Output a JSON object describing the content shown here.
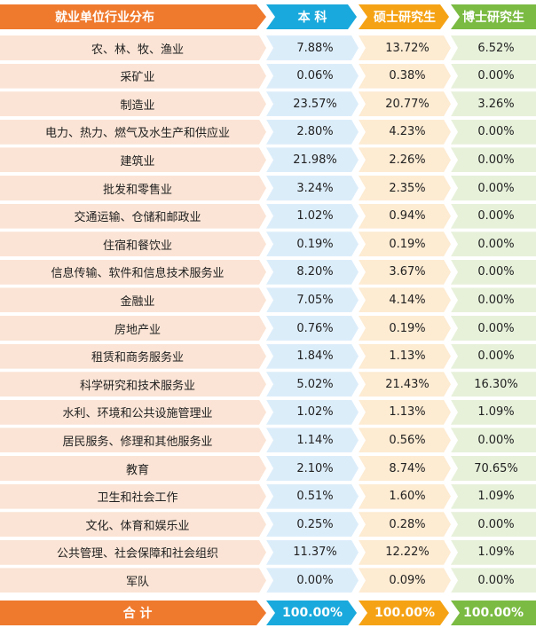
{
  "header": {
    "industry": "就业单位行业分布",
    "bachelor": "本  科",
    "master": "硕士研究生",
    "doctor": "博士研究生"
  },
  "rows": [
    {
      "industry": "农、林、牧、渔业",
      "bachelor": "7.88%",
      "master": "13.72%",
      "doctor": "6.52%"
    },
    {
      "industry": "采矿业",
      "bachelor": "0.06%",
      "master": "0.38%",
      "doctor": "0.00%"
    },
    {
      "industry": "制造业",
      "bachelor": "23.57%",
      "master": "20.77%",
      "doctor": "3.26%"
    },
    {
      "industry": "电力、热力、燃气及水生产和供应业",
      "bachelor": "2.80%",
      "master": "4.23%",
      "doctor": "0.00%"
    },
    {
      "industry": "建筑业",
      "bachelor": "21.98%",
      "master": "2.26%",
      "doctor": "0.00%"
    },
    {
      "industry": "批发和零售业",
      "bachelor": "3.24%",
      "master": "2.35%",
      "doctor": "0.00%"
    },
    {
      "industry": "交通运输、仓储和邮政业",
      "bachelor": "1.02%",
      "master": "0.94%",
      "doctor": "0.00%"
    },
    {
      "industry": "住宿和餐饮业",
      "bachelor": "0.19%",
      "master": "0.19%",
      "doctor": "0.00%"
    },
    {
      "industry": "信息传输、软件和信息技术服务业",
      "bachelor": "8.20%",
      "master": "3.67%",
      "doctor": "0.00%"
    },
    {
      "industry": "金融业",
      "bachelor": "7.05%",
      "master": "4.14%",
      "doctor": "0.00%"
    },
    {
      "industry": "房地产业",
      "bachelor": "0.76%",
      "master": "0.19%",
      "doctor": "0.00%"
    },
    {
      "industry": "租赁和商务服务业",
      "bachelor": "1.84%",
      "master": "1.13%",
      "doctor": "0.00%"
    },
    {
      "industry": "科学研究和技术服务业",
      "bachelor": "5.02%",
      "master": "21.43%",
      "doctor": "16.30%"
    },
    {
      "industry": "水利、环境和公共设施管理业",
      "bachelor": "1.02%",
      "master": "1.13%",
      "doctor": "1.09%"
    },
    {
      "industry": "居民服务、修理和其他服务业",
      "bachelor": "1.14%",
      "master": "0.56%",
      "doctor": "0.00%"
    },
    {
      "industry": "教育",
      "bachelor": "2.10%",
      "master": "8.74%",
      "doctor": "70.65%"
    },
    {
      "industry": "卫生和社会工作",
      "bachelor": "0.51%",
      "master": "1.60%",
      "doctor": "1.09%"
    },
    {
      "industry": "文化、体育和娱乐业",
      "bachelor": "0.25%",
      "master": "0.28%",
      "doctor": "0.00%"
    },
    {
      "industry": "公共管理、社会保障和社会组织",
      "bachelor": "11.37%",
      "master": "12.22%",
      "doctor": "1.09%"
    },
    {
      "industry": "军队",
      "bachelor": "0.00%",
      "master": "0.09%",
      "doctor": "0.00%"
    }
  ],
  "total": {
    "industry": "合    计",
    "bachelor": "100.00%",
    "master": "100.00%",
    "doctor": "100.00%"
  },
  "colors": {
    "industry": "#ef7a2e",
    "bachelor": "#1aa9dc",
    "master": "#f5a315",
    "doctor": "#7bbb43"
  }
}
